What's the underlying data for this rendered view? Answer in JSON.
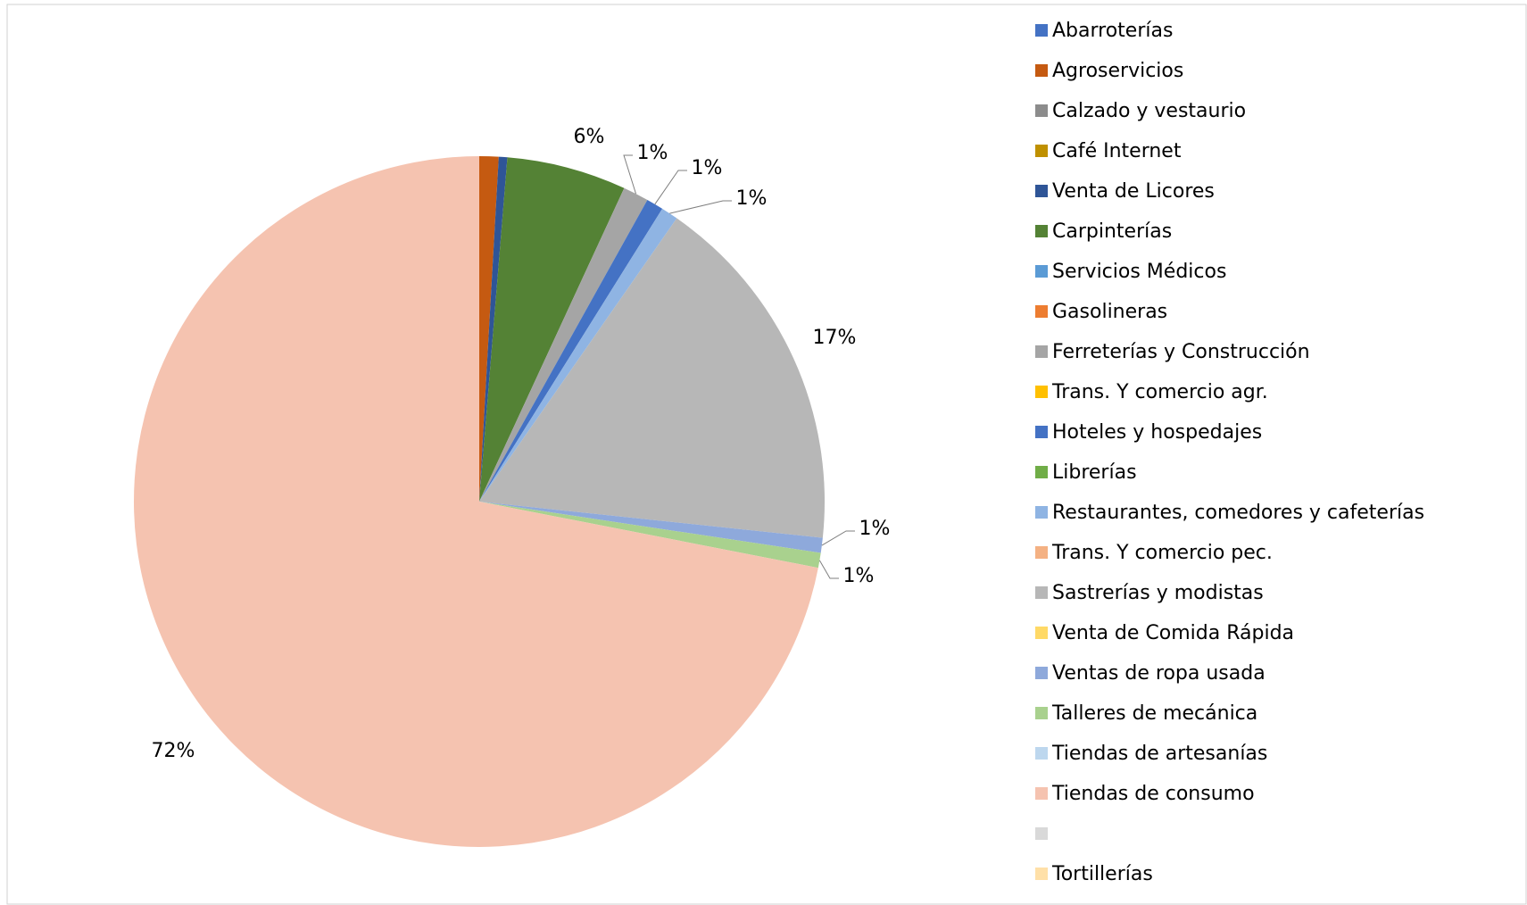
{
  "chart_data": {
    "type": "pie",
    "categories": [
      "Abarroterías",
      "Agroservicios",
      "Calzado y vestaurio",
      "Café Internet",
      "Venta de Licores",
      "Carpinterías",
      "Servicios Médicos",
      "Gasolineras",
      "Ferreterías y Construcción",
      "Trans. Y comercio agr.",
      "Hoteles y hospedajes",
      "Librerías",
      "Restaurantes, comedores y cafeterías",
      "Trans. Y comercio pec.",
      "Sastrerías y modistas",
      "Venta de Comida Rápida",
      "Ventas de ropa usada",
      "Talleres de mecánica",
      "Tiendas de artesanías",
      "Tiendas de consumo",
      null,
      "Tortillerías"
    ],
    "values": [
      0,
      0.9,
      0,
      0,
      0.4,
      5.6,
      0,
      0,
      1.2,
      0,
      0.8,
      0,
      0.8,
      0,
      17,
      0,
      0.7,
      0.7,
      0,
      72,
      0,
      0
    ],
    "value_labels": [
      null,
      null,
      null,
      null,
      null,
      "6%",
      null,
      null,
      "1%",
      null,
      "1%",
      null,
      "1%",
      null,
      "17%",
      null,
      "1%",
      "1%",
      null,
      "72%",
      null,
      null
    ],
    "colors": [
      "#4472C4",
      "#C55A11",
      "#8C8C8C",
      "#BF9000",
      "#2F5597",
      "#548235",
      "#5B9BD5",
      "#ED7D31",
      "#A5A5A5",
      "#FFC000",
      "#4472C4",
      "#70AD47",
      "#8FB4E3",
      "#F4B183",
      "#B7B7B7",
      "#FFD966",
      "#8EA9DB",
      "#A9D18E",
      "#BDD7EE",
      "#F5C3B0",
      "#D9D9D9",
      "#FFE0A8"
    ],
    "legend": "right"
  }
}
